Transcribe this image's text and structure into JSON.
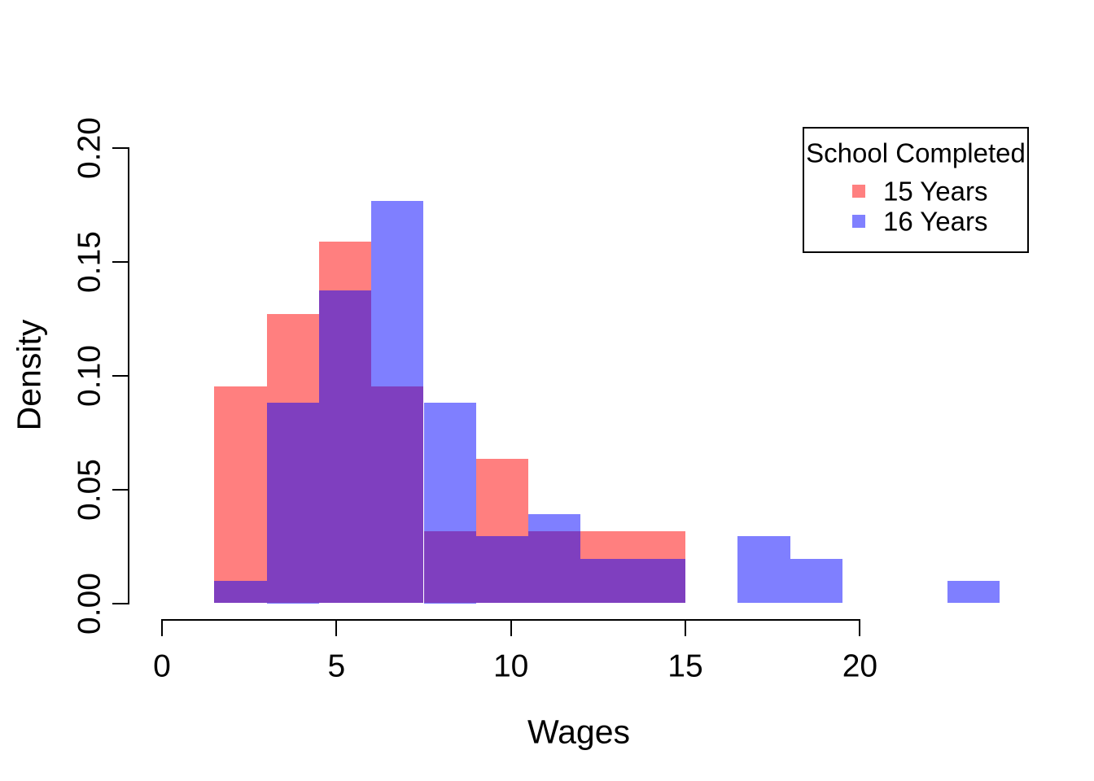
{
  "figure": {
    "background": "#FFFFFF",
    "axis_color": "#000000"
  },
  "chart_data": {
    "type": "histogram",
    "title": "",
    "xlabel": "Wages",
    "ylabel": "Density",
    "xlim": [
      0,
      20
    ],
    "ylim": [
      0,
      0.2
    ],
    "grid": false,
    "x_ticks": [
      "0",
      "5",
      "10",
      "15",
      "20"
    ],
    "x_tick_values": [
      0,
      5,
      10,
      15,
      20
    ],
    "y_ticks": [
      "0.00",
      "0.05",
      "0.10",
      "0.15",
      "0.20"
    ],
    "y_tick_values": [
      0,
      0.05,
      0.1,
      0.15,
      0.2
    ],
    "bin_width": 1.5,
    "overlap_hex": "#8040BF",
    "series": [
      {
        "name": "15 Years",
        "fill": "rgba(255,0,0,0.5)",
        "solid_hex": "#FF8080",
        "bins": [
          {
            "start": 1.5,
            "end": 3.0,
            "density": 0.0952
          },
          {
            "start": 3.0,
            "end": 4.5,
            "density": 0.127
          },
          {
            "start": 4.5,
            "end": 6.0,
            "density": 0.1587
          },
          {
            "start": 6.0,
            "end": 7.5,
            "density": 0.0952
          },
          {
            "start": 7.5,
            "end": 9.0,
            "density": 0.0317
          },
          {
            "start": 9.0,
            "end": 10.5,
            "density": 0.0635
          },
          {
            "start": 10.5,
            "end": 12.0,
            "density": 0.0317
          },
          {
            "start": 12.0,
            "end": 13.5,
            "density": 0.0317
          },
          {
            "start": 13.5,
            "end": 15.0,
            "density": 0.0317
          }
        ]
      },
      {
        "name": "16 Years",
        "fill": "rgba(0,0,255,0.5)",
        "solid_hex": "#8080FF",
        "bins": [
          {
            "start": 1.5,
            "end": 3.0,
            "density": 0.0098
          },
          {
            "start": 3.0,
            "end": 4.5,
            "density": 0.0882
          },
          {
            "start": 4.5,
            "end": 6.0,
            "density": 0.1373
          },
          {
            "start": 6.0,
            "end": 7.5,
            "density": 0.1765
          },
          {
            "start": 7.5,
            "end": 9.0,
            "density": 0.0882
          },
          {
            "start": 9.0,
            "end": 10.5,
            "density": 0.0294
          },
          {
            "start": 10.5,
            "end": 12.0,
            "density": 0.0392
          },
          {
            "start": 12.0,
            "end": 13.5,
            "density": 0.0196
          },
          {
            "start": 13.5,
            "end": 15.0,
            "density": 0.0196
          },
          {
            "start": 16.5,
            "end": 18.0,
            "density": 0.0294
          },
          {
            "start": 18.0,
            "end": 19.5,
            "density": 0.0196
          },
          {
            "start": 22.5,
            "end": 24.0,
            "density": 0.0098
          }
        ]
      }
    ],
    "legend": {
      "title": "School Completed",
      "position": "top-right",
      "entries": [
        {
          "label": "15 Years",
          "color": "#FF8080"
        },
        {
          "label": "16 Years",
          "color": "#8080FF"
        }
      ]
    }
  }
}
